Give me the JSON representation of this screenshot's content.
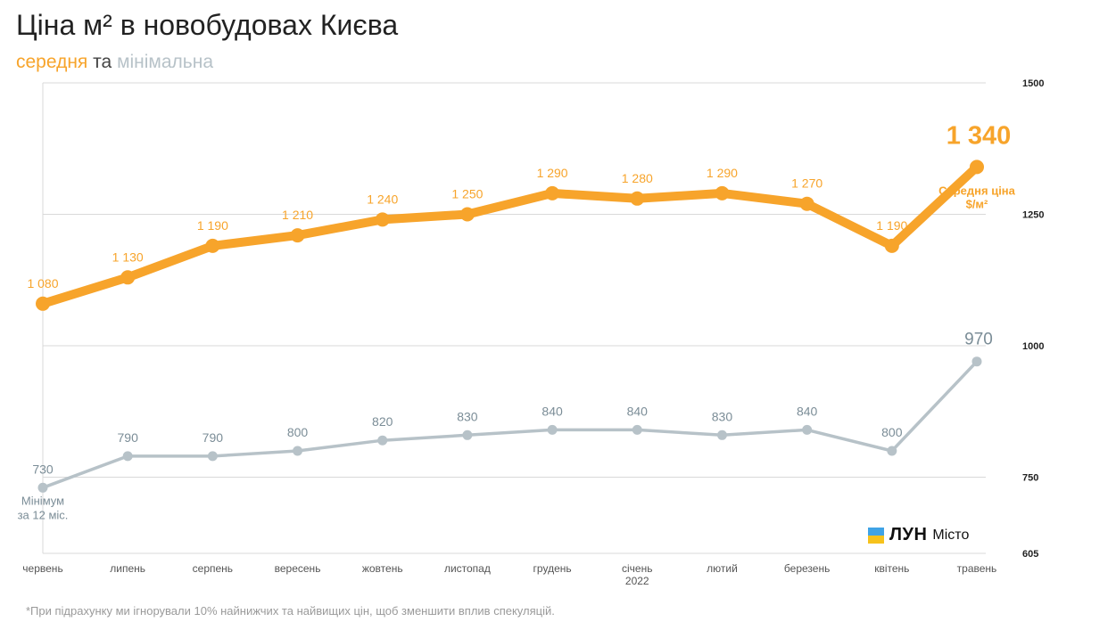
{
  "header": {
    "title": "Ціна м² в новобудовах Києва",
    "subtitle_avg": "середня",
    "subtitle_and": "та",
    "subtitle_min": "мінімальна"
  },
  "footnote": "*При підрахунку ми ігнорували 10% найнижчих та найвищих цін, щоб зменшити вплив спекуляцій.",
  "logo": {
    "word": "ЛУН",
    "sub": "Місто"
  },
  "colors": {
    "avg": "#f7a42b",
    "min": "#b7c2c8",
    "min_label": "#7b8d97",
    "grid": "#d9d9d9",
    "axis_text": "#222222",
    "tick_text": "#555555"
  },
  "chart_data": {
    "type": "line",
    "categories": [
      "червень",
      "липень",
      "серпень",
      "вересень",
      "жовтень",
      "листопад",
      "грудень",
      "січень",
      "лютий",
      "березень",
      "квітень",
      "травень"
    ],
    "category_sublabels": [
      "",
      "",
      "",
      "",
      "",
      "",
      "",
      "2022",
      "",
      "",
      "",
      ""
    ],
    "series": [
      {
        "key": "avg",
        "values": [
          1080,
          1130,
          1190,
          1210,
          1240,
          1250,
          1290,
          1280,
          1290,
          1270,
          1190,
          1340
        ],
        "labels": [
          "1 080",
          "1 130",
          "1 190",
          "1 210",
          "1 240",
          "1 250",
          "1 290",
          "1 280",
          "1 290",
          "1 270",
          "1 190",
          "1 340"
        ],
        "end_annotation": [
          "Середня ціна",
          "$/м²"
        ]
      },
      {
        "key": "min",
        "values": [
          730,
          790,
          790,
          800,
          820,
          830,
          840,
          840,
          830,
          840,
          800,
          970
        ],
        "labels": [
          "730",
          "790",
          "790",
          "800",
          "820",
          "830",
          "840",
          "840",
          "830",
          "840",
          "800",
          "970"
        ],
        "start_annotation": [
          "Мінімум",
          "за 12 міс."
        ]
      }
    ],
    "y_ticks": [
      1500,
      1250,
      1000,
      750,
      605
    ],
    "y_tick_labels": [
      "1500",
      "1250",
      "1000",
      "750",
      "605"
    ],
    "ylim": [
      605,
      1500
    ],
    "grid": true
  }
}
